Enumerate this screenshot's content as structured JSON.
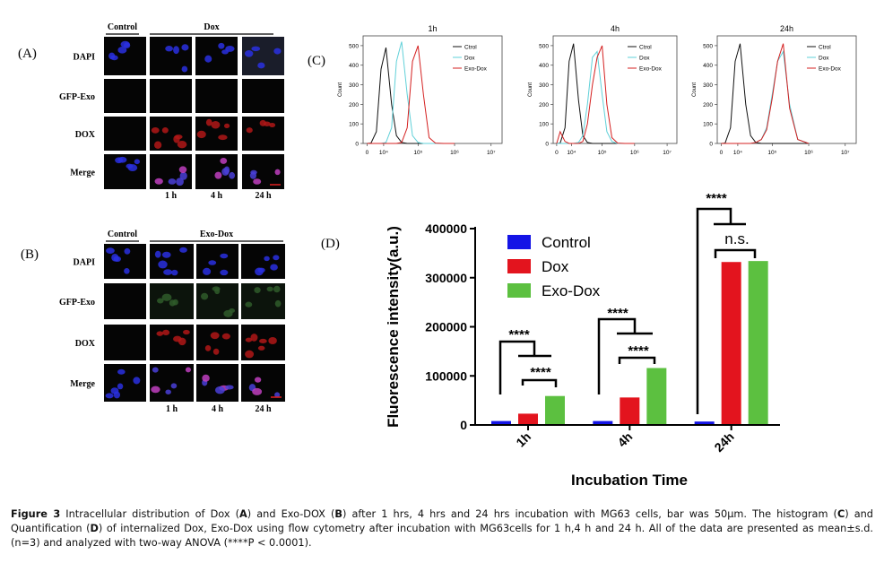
{
  "figure": {
    "panel_a": {
      "label": "(A)",
      "headers": [
        "Control",
        "Dox"
      ],
      "rows": [
        "DAPI",
        "GFP-Exo",
        "DOX",
        "Merge"
      ],
      "columns": [
        "1 h",
        "4 h",
        "24 h"
      ]
    },
    "panel_b": {
      "label": "(B)",
      "headers": [
        "Control",
        "Exo-Dox"
      ],
      "rows": [
        "DAPI",
        "GFP-Exo",
        "DOX",
        "Merge"
      ],
      "columns": [
        "1 h",
        "4 h",
        "24 h"
      ]
    },
    "panel_c": {
      "label": "(C)"
    },
    "panel_d": {
      "label": "(D)"
    },
    "caption": [
      "Figure 3",
      " Intracellular distribution of Dox (",
      "A",
      ") and Exo-DOX (",
      "B",
      ") after 1 hrs, 4 hrs and 24 hrs incubation with MG63 cells, bar was 50μm. The histogram (",
      "C",
      ") and Quantification (",
      "D",
      ") of internalized Dox, Exo-Dox using flow cytometry after incubation with MG63cells for 1 h,4 h and 24 h. All of the data are presented as mean±s.d. (n=3) and analyzed with two-way ANOVA (****P < 0.0001)."
    ]
  },
  "chart_data": [
    {
      "type": "line",
      "title": "1h",
      "ylabel": "Count",
      "xscale": "biexponential",
      "x": [
        0,
        2000,
        5000,
        8000,
        12000,
        18000,
        25000,
        35000,
        50000,
        70000,
        100000,
        140000,
        200000,
        300000,
        500000,
        1000000
      ],
      "series": [
        {
          "name": "Ctrol",
          "color": "#111111",
          "values": [
            0,
            2,
            60,
            380,
            490,
            200,
            40,
            5,
            0,
            0,
            0,
            0,
            0,
            0,
            0,
            0
          ]
        },
        {
          "name": "Dox",
          "color": "#5fd0d8",
          "values": [
            0,
            0,
            0,
            0,
            5,
            80,
            420,
            520,
            250,
            40,
            5,
            0,
            0,
            0,
            0,
            0
          ]
        },
        {
          "name": "Exo-Dox",
          "color": "#d42020",
          "values": [
            0,
            0,
            0,
            0,
            0,
            0,
            0,
            5,
            80,
            420,
            500,
            250,
            30,
            2,
            0,
            0
          ]
        }
      ],
      "xlim": [
        -2000,
        20000000
      ],
      "ylim": [
        0,
        550
      ],
      "yticks": [
        0,
        100,
        200,
        300,
        400,
        500
      ],
      "xticks": [
        {
          "value": 0,
          "label": "0"
        },
        {
          "value": 10000,
          "label": "10⁴"
        },
        {
          "value": 100000,
          "label": "10⁵"
        },
        {
          "value": 1000000,
          "label": "10⁶"
        },
        {
          "value": 10000000,
          "label": "10⁷"
        }
      ]
    },
    {
      "type": "line",
      "title": "4h",
      "ylabel": "Count",
      "xscale": "biexponential",
      "x": [
        0,
        2000,
        5000,
        8000,
        12000,
        18000,
        25000,
        35000,
        50000,
        70000,
        100000,
        140000,
        200000,
        300000,
        500000,
        1000000
      ],
      "series": [
        {
          "name": "Ctrol",
          "color": "#111111",
          "values": [
            0,
            2,
            80,
            420,
            510,
            220,
            40,
            5,
            0,
            0,
            0,
            0,
            0,
            0,
            0,
            0
          ]
        },
        {
          "name": "Dox",
          "color": "#5fd0d8",
          "values": [
            0,
            0,
            0,
            0,
            0,
            5,
            40,
            200,
            440,
            470,
            250,
            60,
            10,
            0,
            0,
            0
          ]
        },
        {
          "name": "Exo-Dox",
          "color": "#d42020",
          "values": [
            0,
            60,
            10,
            0,
            0,
            0,
            10,
            100,
            300,
            440,
            500,
            200,
            30,
            2,
            0,
            0
          ]
        }
      ],
      "xlim": [
        -2000,
        20000000
      ],
      "ylim": [
        0,
        550
      ],
      "yticks": [
        0,
        100,
        200,
        300,
        400,
        500
      ],
      "xticks": [
        {
          "value": 0,
          "label": "0"
        },
        {
          "value": 10000,
          "label": "10⁴"
        },
        {
          "value": 100000,
          "label": "10⁵"
        },
        {
          "value": 1000000,
          "label": "10⁶"
        },
        {
          "value": 10000000,
          "label": "10⁷"
        }
      ]
    },
    {
      "type": "line",
      "title": "24h",
      "ylabel": "Count",
      "xscale": "biexponential",
      "x": [
        0,
        2000,
        5000,
        8000,
        12000,
        18000,
        25000,
        35000,
        50000,
        70000,
        100000,
        140000,
        200000,
        300000,
        500000,
        1000000
      ],
      "series": [
        {
          "name": "Ctrol",
          "color": "#111111",
          "values": [
            0,
            2,
            80,
            420,
            510,
            200,
            40,
            5,
            0,
            0,
            0,
            0,
            0,
            0,
            0,
            0
          ]
        },
        {
          "name": "Dox",
          "color": "#5fd0d8",
          "values": [
            0,
            0,
            0,
            0,
            0,
            0,
            0,
            5,
            20,
            80,
            250,
            420,
            470,
            200,
            20,
            0
          ]
        },
        {
          "name": "Exo-Dox",
          "color": "#d42020",
          "values": [
            0,
            0,
            0,
            0,
            0,
            0,
            0,
            5,
            20,
            70,
            230,
            420,
            510,
            180,
            20,
            0
          ]
        }
      ],
      "xlim": [
        -2000,
        20000000
      ],
      "ylim": [
        0,
        550
      ],
      "yticks": [
        0,
        100,
        200,
        300,
        400,
        500
      ],
      "xticks": [
        {
          "value": 0,
          "label": "0"
        },
        {
          "value": 10000,
          "label": "10⁴"
        },
        {
          "value": 100000,
          "label": "10⁵"
        },
        {
          "value": 1000000,
          "label": "10⁶"
        },
        {
          "value": 10000000,
          "label": "10⁷"
        }
      ]
    },
    {
      "type": "bar",
      "xlabel": "Incubation Time",
      "ylabel": "Fluorescence intensity(a.u.)",
      "categories": [
        "1h",
        "4h",
        "24h"
      ],
      "series": [
        {
          "name": "Control",
          "color": "#1414e6",
          "values": [
            8000,
            8000,
            7000
          ]
        },
        {
          "name": "Dox",
          "color": "#e3141e",
          "values": [
            23000,
            56000,
            332000
          ]
        },
        {
          "name": "Exo-Dox",
          "color": "#5cc040",
          "values": [
            59000,
            116000,
            334000
          ]
        }
      ],
      "ylim": [
        0,
        400000
      ],
      "yticks": [
        0,
        100000,
        200000,
        300000,
        400000
      ],
      "annotations": [
        "****",
        "****",
        "****",
        "****",
        "****",
        "n.s."
      ]
    }
  ]
}
